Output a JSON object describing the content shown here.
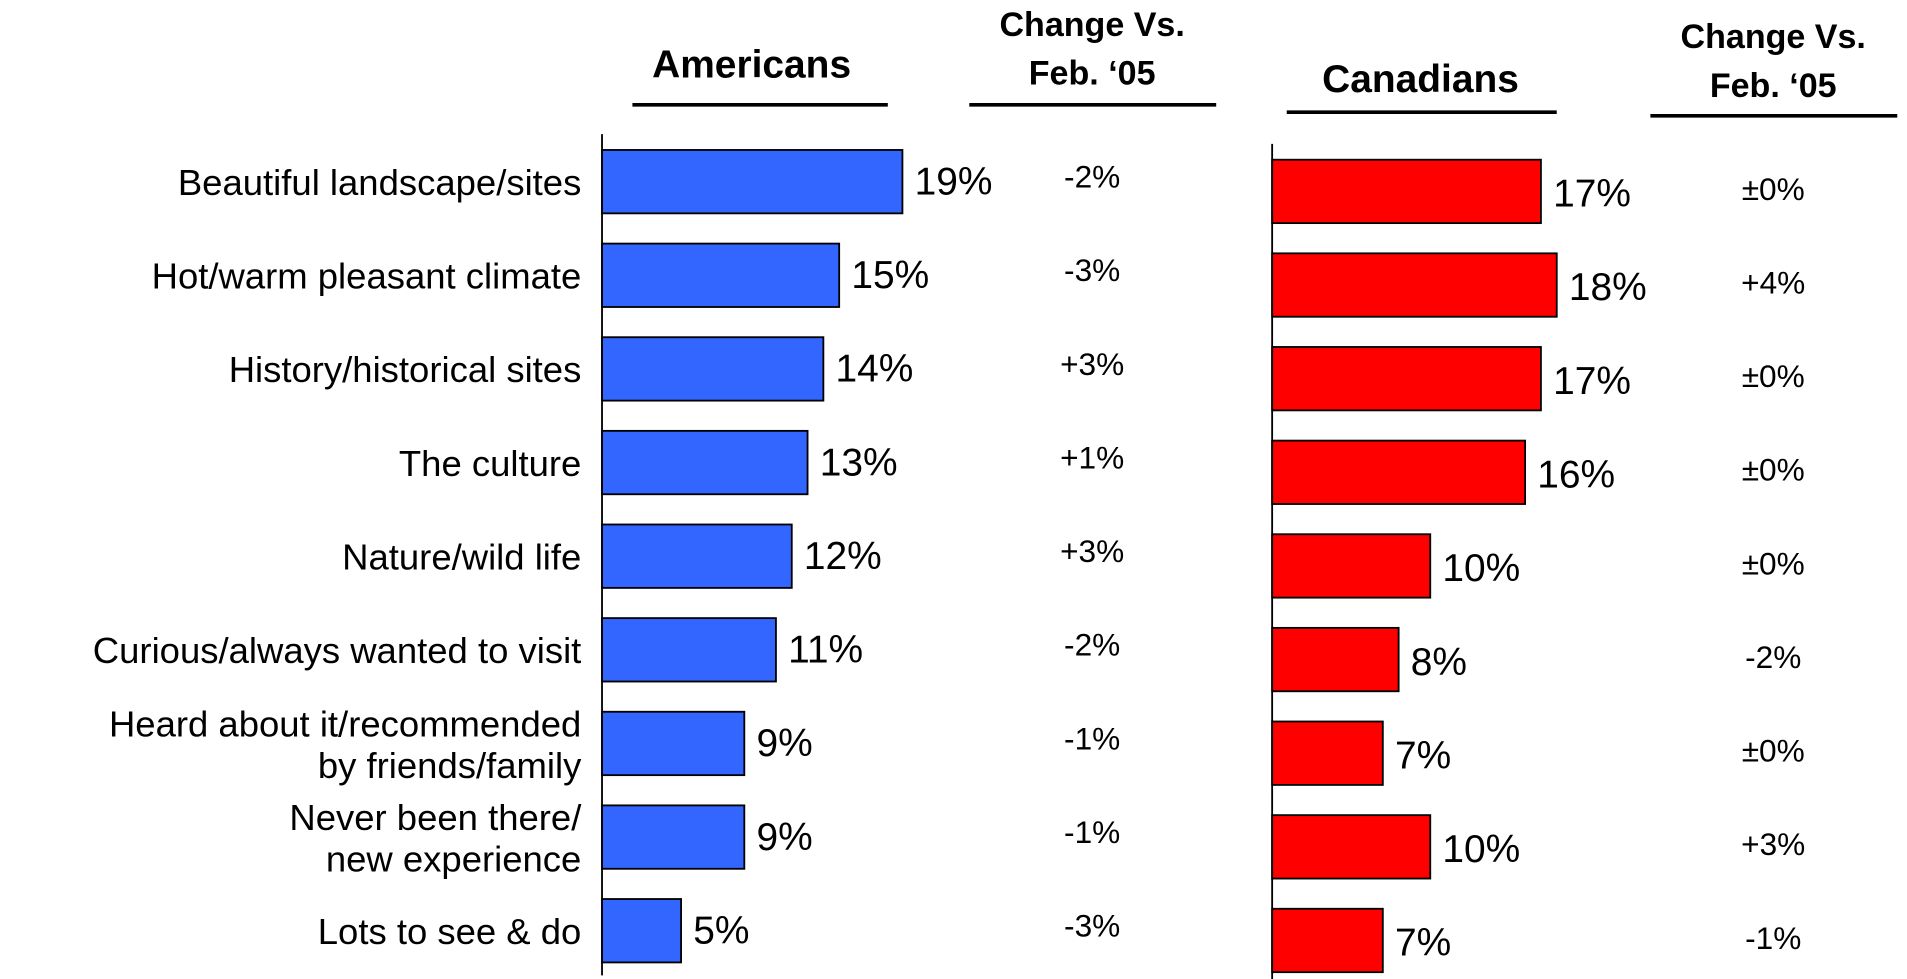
{
  "chart_data": {
    "type": "bar",
    "orientation": "horizontal",
    "categories": [
      "Beautiful landscape/sites",
      "Hot/warm pleasant climate",
      "History/historical sites",
      "The culture",
      "Nature/wild life",
      "Curious/always wanted to visit",
      "Heard about it/recommended\nby friends/family",
      "Never been there/\nnew experience",
      "Lots to see & do"
    ],
    "change_header": "Change Vs.\nFeb. ‘05",
    "xlim": [
      0,
      20
    ],
    "series": [
      {
        "name": "Americans",
        "color": "#3366ff",
        "values": [
          19,
          15,
          14,
          13,
          12,
          11,
          9,
          9,
          5
        ],
        "value_labels": [
          "19%",
          "15%",
          "14%",
          "13%",
          "12%",
          "11%",
          "9%",
          "9%",
          "5%"
        ],
        "change_labels": [
          "-2%",
          "-3%",
          "+3%",
          "+1%",
          "+3%",
          "-2%",
          "-1%",
          "-1%",
          "-3%"
        ]
      },
      {
        "name": "Canadians",
        "color": "#ff0000",
        "values": [
          17,
          18,
          17,
          16,
          10,
          8,
          7,
          10,
          7
        ],
        "value_labels": [
          "17%",
          "18%",
          "17%",
          "16%",
          "10%",
          "8%",
          "7%",
          "10%",
          "7%"
        ],
        "change_labels": [
          "±0%",
          "+4%",
          "±0%",
          "±0%",
          "±0%",
          "-2%",
          "±0%",
          "+3%",
          "-1%"
        ]
      }
    ]
  }
}
